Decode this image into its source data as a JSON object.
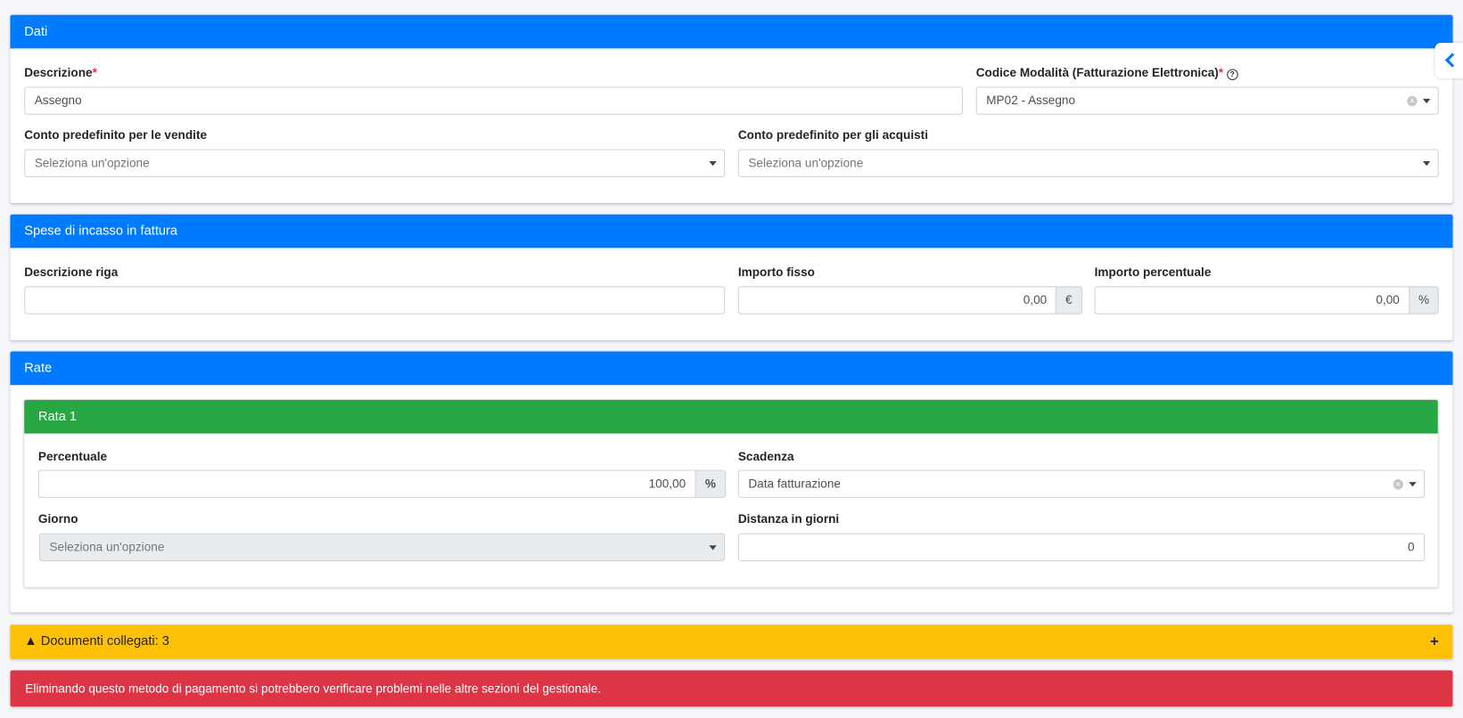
{
  "dati": {
    "title": "Dati",
    "descrizione": {
      "label": "Descrizione",
      "required": "*",
      "value": "Assegno"
    },
    "codice": {
      "label": "Codice Modalità (Fatturazione Elettronica)",
      "required": "*",
      "value": "MP02 - Assegno"
    },
    "conto_vendite": {
      "label": "Conto predefinito per le vendite",
      "placeholder": "Seleziona un'opzione"
    },
    "conto_acquisti": {
      "label": "Conto predefinito per gli acquisti",
      "placeholder": "Seleziona un'opzione"
    }
  },
  "spese": {
    "title": "Spese di incasso in fattura",
    "descrizione_riga": {
      "label": "Descrizione riga",
      "value": ""
    },
    "importo_fisso": {
      "label": "Importo fisso",
      "value": "0,00",
      "unit": "€"
    },
    "importo_percentuale": {
      "label": "Importo percentuale",
      "value": "0,00",
      "unit": "%"
    }
  },
  "rate": {
    "title": "Rate",
    "rata": {
      "title": "Rata 1",
      "percentuale": {
        "label": "Percentuale",
        "value": "100,00",
        "unit": "%"
      },
      "scadenza": {
        "label": "Scadenza",
        "value": "Data fatturazione"
      },
      "giorno": {
        "label": "Giorno",
        "placeholder": "Seleziona un'opzione"
      },
      "distanza": {
        "label": "Distanza in giorni",
        "value": "0"
      }
    }
  },
  "documenti": {
    "label": "Documenti collegati: 3",
    "icon": "warning-icon",
    "expand": "+"
  },
  "alert": {
    "text": "Eliminando questo metodo di pagamento si potrebbero verificare problemi nelle altre sezioni del gestionale."
  },
  "colors": {
    "primary": "#007bff",
    "success": "#28a745",
    "warning": "#ffc107",
    "danger": "#dc3545"
  }
}
